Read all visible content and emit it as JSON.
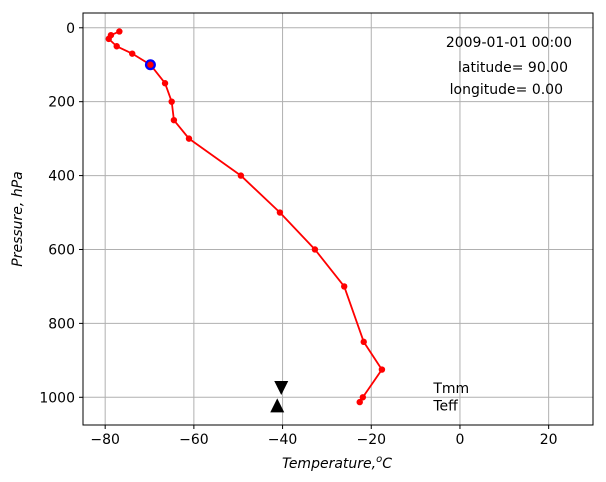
{
  "chart_data": {
    "type": "line",
    "xlabel": "Temperature,",
    "xlabel_sup": "o",
    "xlabel_unit": "C",
    "ylabel": "Pressure, hPa",
    "xlim": [
      -85,
      30
    ],
    "ylim": [
      1075,
      -40
    ],
    "y_inverted": true,
    "grid": true,
    "x_ticks": [
      -80,
      -60,
      -40,
      -20,
      0,
      20
    ],
    "y_ticks": [
      0,
      200,
      400,
      600,
      800,
      1000
    ],
    "x_tick_labels": [
      "−80",
      "−60",
      "−40",
      "−20",
      "0",
      "20"
    ],
    "y_tick_labels": [
      "0",
      "200",
      "400",
      "600",
      "800",
      "1000"
    ],
    "series": [
      {
        "color": "#ff0000",
        "marker": "circle",
        "points": [
          {
            "t": -76.8,
            "p": 10
          },
          {
            "t": -78.7,
            "p": 20
          },
          {
            "t": -79.2,
            "p": 30
          },
          {
            "t": -77.4,
            "p": 50
          },
          {
            "t": -73.9,
            "p": 70
          },
          {
            "t": -69.8,
            "p": 100
          },
          {
            "t": -66.5,
            "p": 150
          },
          {
            "t": -65.0,
            "p": 200
          },
          {
            "t": -64.5,
            "p": 250
          },
          {
            "t": -61.1,
            "p": 300
          },
          {
            "t": -49.4,
            "p": 400
          },
          {
            "t": -40.6,
            "p": 500
          },
          {
            "t": -32.7,
            "p": 600
          },
          {
            "t": -26.1,
            "p": 700
          },
          {
            "t": -21.7,
            "p": 850
          },
          {
            "t": -17.6,
            "p": 925
          },
          {
            "t": -21.9,
            "p": 1000
          },
          {
            "t": -22.6,
            "p": 1013
          }
        ]
      }
    ],
    "highlight_point": {
      "t": -69.8,
      "p": 100,
      "color": "#0000ff"
    },
    "markers": [
      {
        "label": "Tmm",
        "t": -40.3,
        "p": 975,
        "shape": "triangle-down",
        "label_t": -6,
        "label_p": 975
      },
      {
        "label": "Teff",
        "t": -41.2,
        "p": 1022,
        "shape": "triangle-up",
        "label_t": -6,
        "label_p": 1022
      }
    ],
    "annotations": {
      "datetime": "2009-01-01 00:00",
      "latitude": "latitude= 90.00",
      "longitude": "longitude=  0.00"
    }
  }
}
